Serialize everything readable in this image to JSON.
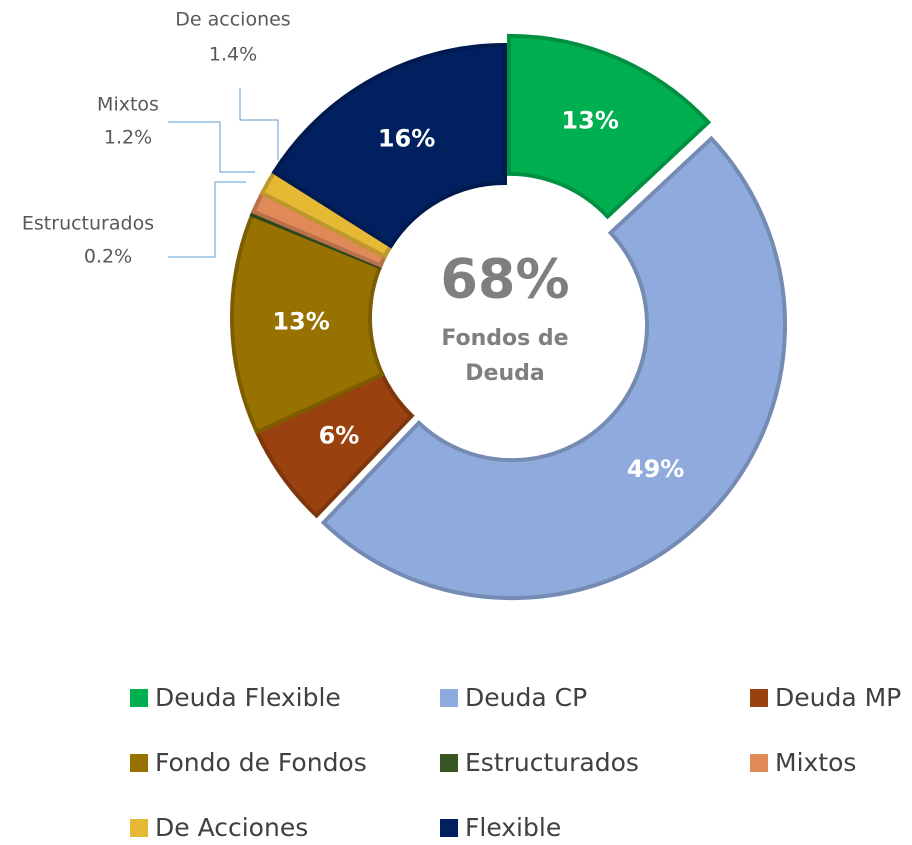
{
  "chart_data": {
    "type": "donut",
    "categories": [
      "Deuda Flexible",
      "Deuda CP",
      "Deuda MP",
      "Fondo de Fondos",
      "Estructurados",
      "Mixtos",
      "De Acciones",
      "Flexible"
    ],
    "values": [
      13,
      49,
      6,
      13,
      0.2,
      1.2,
      1.4,
      16
    ],
    "value_labels": [
      "13%",
      "49%",
      "6%",
      "13%",
      "0.2%",
      "1.2%",
      "1.4%",
      "16%"
    ],
    "outer_names": [
      null,
      null,
      null,
      null,
      "Estructurados",
      "Mixtos",
      "De acciones",
      null
    ],
    "colors": [
      "#00b050",
      "#8faadc",
      "#9a420f",
      "#987200",
      "#375623",
      "#e08a5a",
      "#e6b935",
      "#002060"
    ],
    "exploded": [
      true,
      true,
      false,
      false,
      false,
      false,
      false,
      false
    ],
    "center_value": "68%",
    "center_label": [
      "Fondos de",
      "Deuda"
    ],
    "legend": "bottom"
  }
}
